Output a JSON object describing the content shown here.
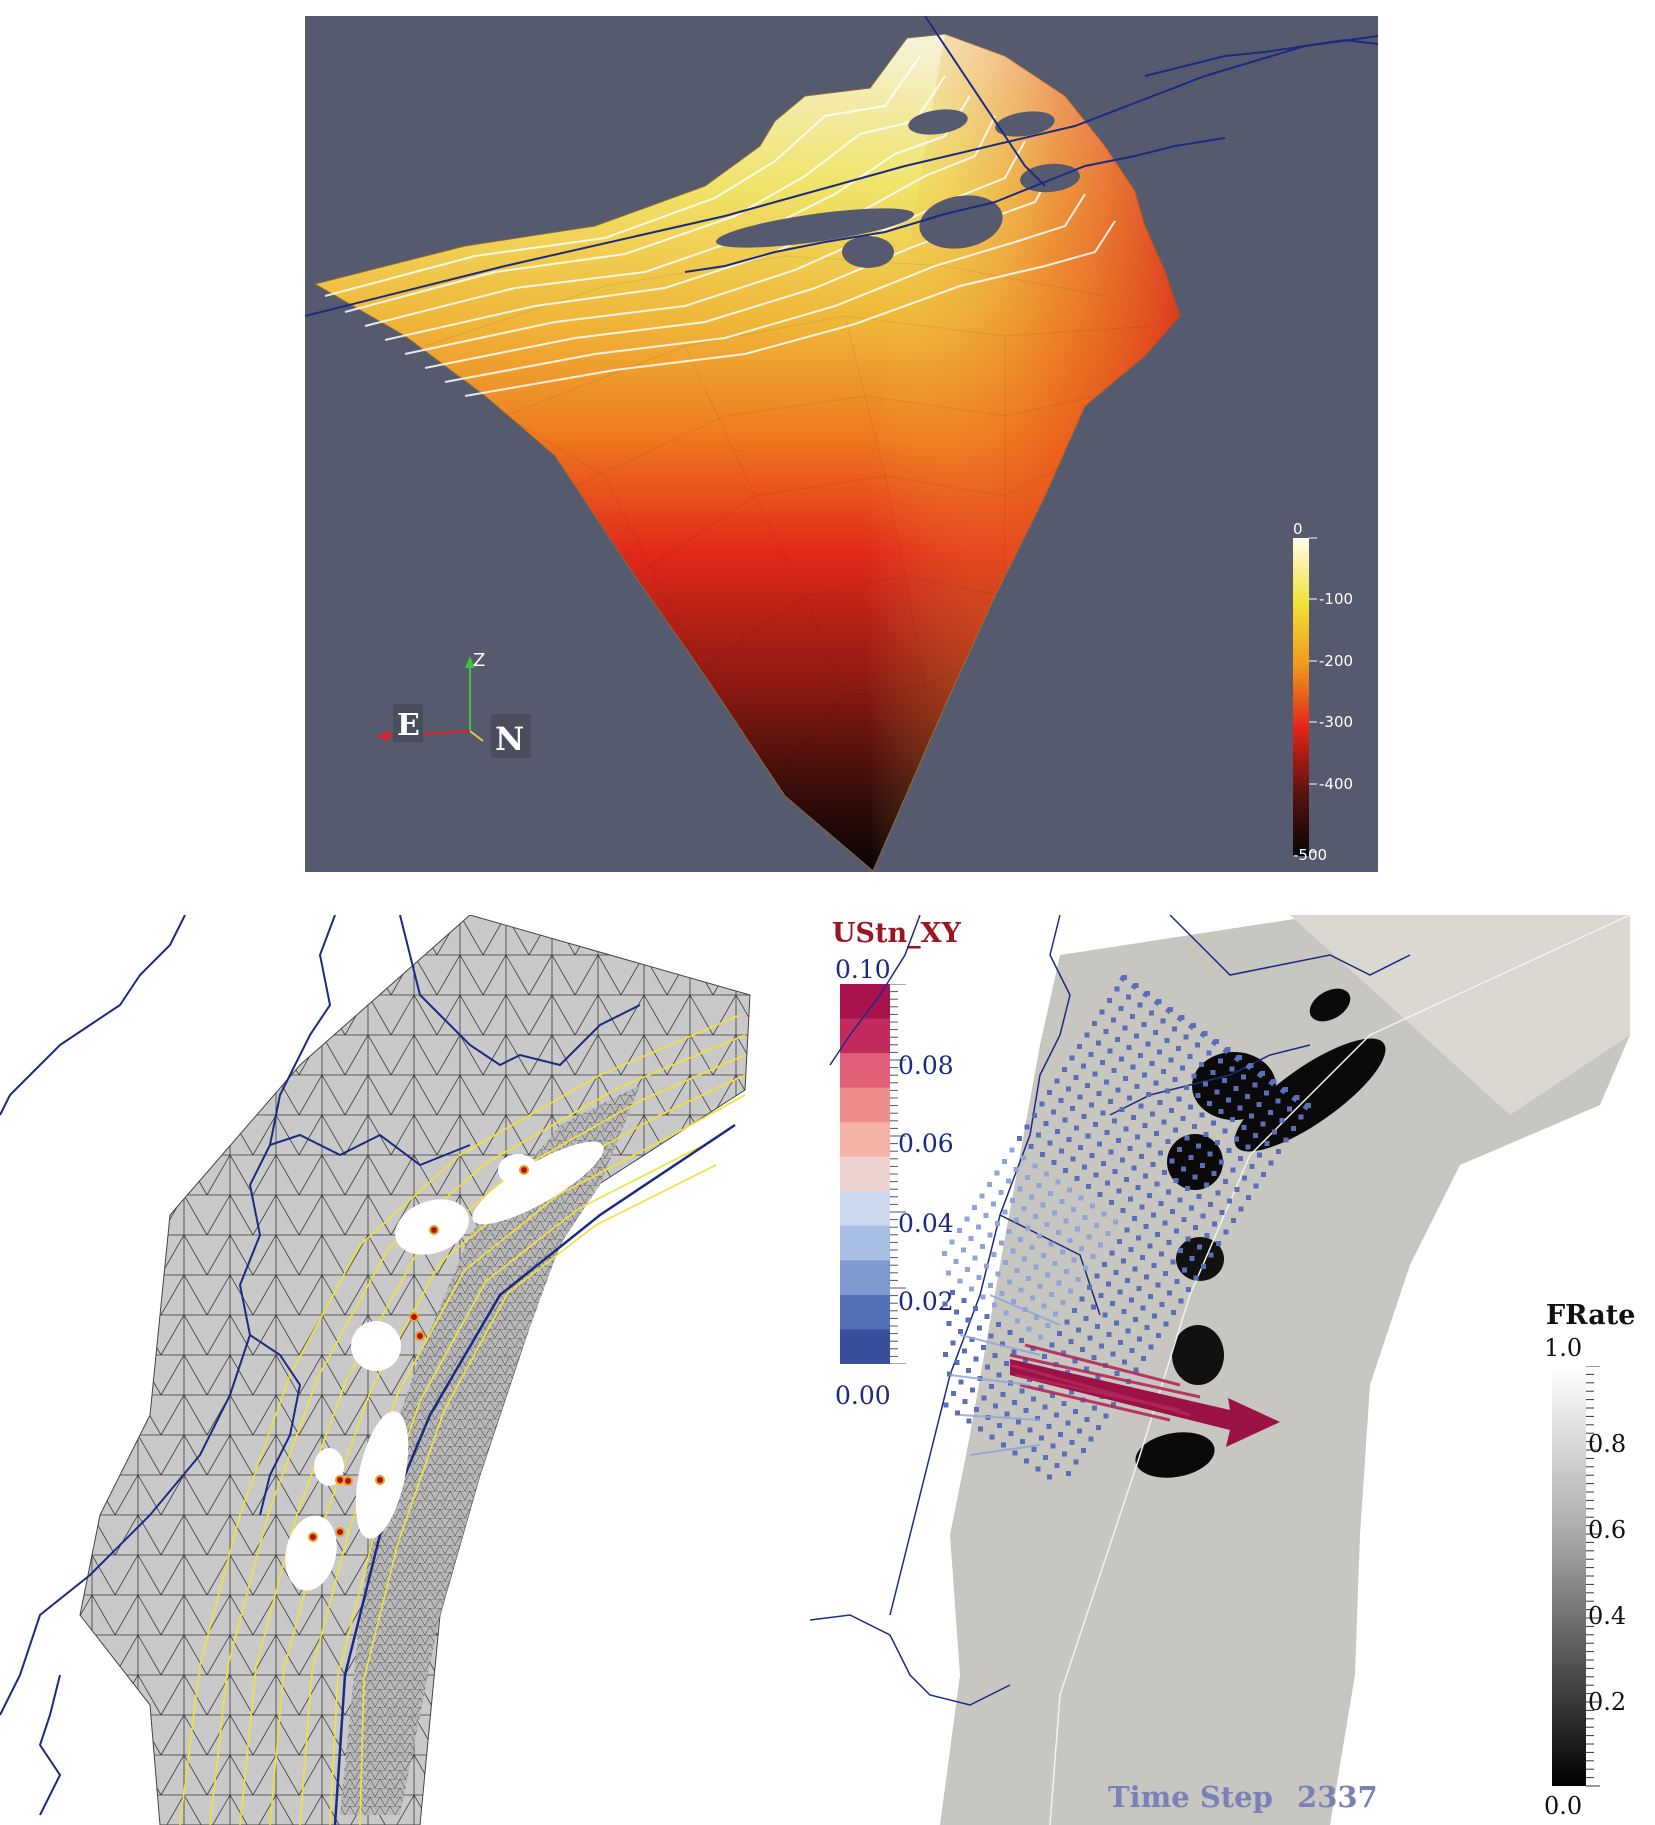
{
  "top_panel": {
    "depth_colorbar": {
      "ticks": [
        "0",
        "-100",
        "-200",
        "-300",
        "-400",
        "-500"
      ],
      "colors": [
        "#fffde8",
        "#f2e23a",
        "#ee9a1c",
        "#e2231a",
        "#5a1310",
        "#050505"
      ]
    },
    "axes_triad": {
      "z_label": "Z",
      "east_label": "E",
      "north_label": "N"
    }
  },
  "ustn_colorbar": {
    "title": "UStn_XY",
    "ticks": [
      "0.10",
      "0.08",
      "0.06",
      "0.04",
      "0.02",
      "0.00"
    ],
    "colors": [
      "#3a4f9c",
      "#5570b8",
      "#7f98cf",
      "#a8bde3",
      "#ccd8ee",
      "#ecd3d0",
      "#f5b2a8",
      "#ef8c8c",
      "#e2607a",
      "#c22a5e",
      "#a8134e"
    ]
  },
  "frate_colorbar": {
    "title": "FRate",
    "ticks": [
      "1.0",
      "0.8",
      "0.6",
      "0.4",
      "0.2",
      "0.0"
    ]
  },
  "time_step": {
    "label": "Time Step",
    "value": "2337"
  },
  "colors": {
    "background": "#565a6e",
    "coastline": "#1c2a80",
    "contour_yellow": "#f2e235",
    "vector_max": "#9a1246"
  }
}
